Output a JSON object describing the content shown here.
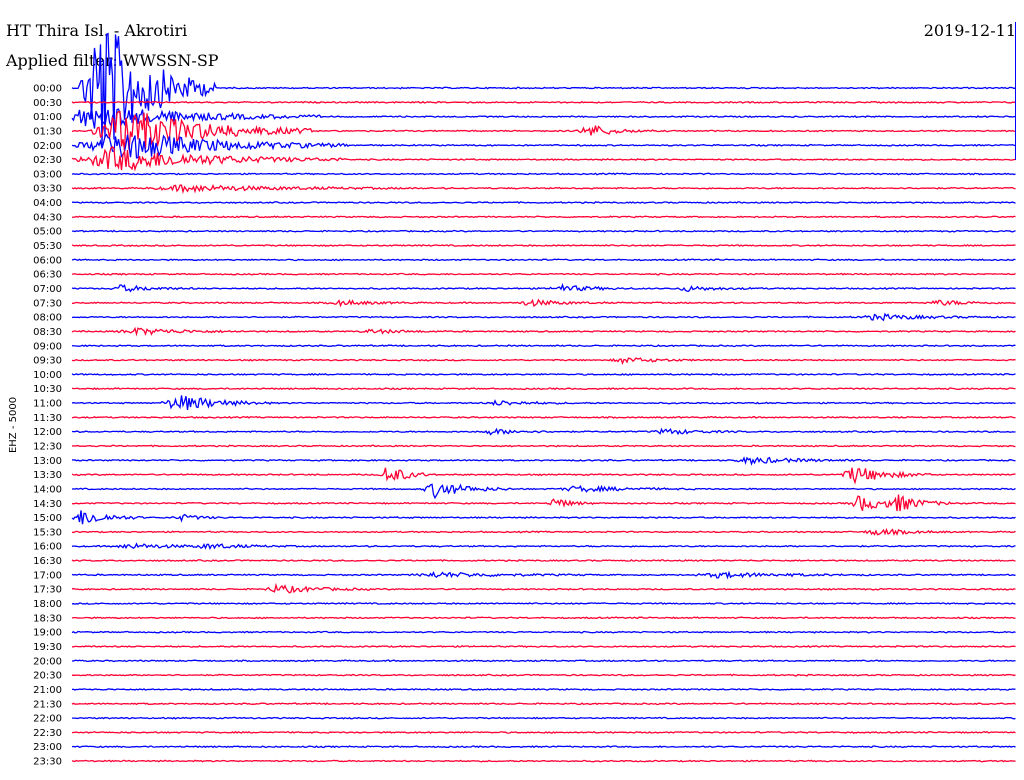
{
  "header": {
    "station": "HT Thira Isl. - Akrotiri",
    "date": "2019-12-11",
    "filter": "Applied filter: WWSSN-SP"
  },
  "side_label": "EHZ - 5000",
  "colors": {
    "odd_trace": "#0000ff",
    "even_trace": "#ff0033",
    "marker": "#0000ff"
  },
  "chart_data": {
    "type": "helicorder",
    "title": "HT Thira Isl. - Akrotiri",
    "ylabel": "EHZ - 5000",
    "rows": [
      "00:00",
      "00:30",
      "01:00",
      "01:30",
      "02:00",
      "02:30",
      "03:00",
      "03:30",
      "04:00",
      "04:30",
      "05:00",
      "05:30",
      "06:00",
      "06:30",
      "07:00",
      "07:30",
      "08:00",
      "08:30",
      "09:00",
      "09:30",
      "10:00",
      "10:30",
      "11:00",
      "11:30",
      "12:00",
      "12:30",
      "13:00",
      "13:30",
      "14:00",
      "14:30",
      "15:00",
      "15:30",
      "16:00",
      "16:30",
      "17:00",
      "17:30",
      "18:00",
      "18:30",
      "19:00",
      "19:30",
      "20:00",
      "20:30",
      "21:00",
      "21:30",
      "22:00",
      "22:30",
      "23:00",
      "23:30"
    ],
    "row_minutes": 30,
    "color_cycle": [
      "blue",
      "red"
    ],
    "events": [
      {
        "row": 0,
        "minute": 0.8,
        "amplitude": 20,
        "duration_min": 1.5
      },
      {
        "row": 2,
        "minute": 0.5,
        "amplitude": 3,
        "duration_min": 3
      },
      {
        "row": 3,
        "minute": 1.5,
        "amplitude": 6,
        "duration_min": 2.5
      },
      {
        "row": 3,
        "minute": 16.5,
        "amplitude": 1.2,
        "duration_min": 0.8
      },
      {
        "row": 3,
        "minute": 16.2,
        "amplitude": 0.6,
        "duration_min": 0.5
      },
      {
        "row": 4,
        "minute": 1.3,
        "amplitude": 4,
        "duration_min": 3
      },
      {
        "row": 5,
        "minute": 1.2,
        "amplitude": 3,
        "duration_min": 3
      },
      {
        "row": 7,
        "minute": 3.5,
        "amplitude": 0.8,
        "duration_min": 3
      },
      {
        "row": 14,
        "minute": 1.5,
        "amplitude": 0.8,
        "duration_min": 1
      },
      {
        "row": 14,
        "minute": 15.5,
        "amplitude": 0.8,
        "duration_min": 1
      },
      {
        "row": 14,
        "minute": 19.5,
        "amplitude": 0.6,
        "duration_min": 1
      },
      {
        "row": 15,
        "minute": 8.5,
        "amplitude": 0.6,
        "duration_min": 1
      },
      {
        "row": 15,
        "minute": 14.5,
        "amplitude": 0.8,
        "duration_min": 1
      },
      {
        "row": 15,
        "minute": 27.5,
        "amplitude": 0.6,
        "duration_min": 1
      },
      {
        "row": 16,
        "minute": 25.5,
        "amplitude": 0.7,
        "duration_min": 1.5
      },
      {
        "row": 17,
        "minute": 2.0,
        "amplitude": 0.8,
        "duration_min": 1.5
      },
      {
        "row": 17,
        "minute": 9.5,
        "amplitude": 0.5,
        "duration_min": 1
      },
      {
        "row": 19,
        "minute": 17.5,
        "amplitude": 0.7,
        "duration_min": 1
      },
      {
        "row": 22,
        "minute": 3.3,
        "amplitude": 2.2,
        "duration_min": 1.2
      },
      {
        "row": 22,
        "minute": 13.5,
        "amplitude": 0.6,
        "duration_min": 1
      },
      {
        "row": 24,
        "minute": 13.3,
        "amplitude": 0.6,
        "duration_min": 1
      },
      {
        "row": 24,
        "minute": 18.8,
        "amplitude": 0.7,
        "duration_min": 1
      },
      {
        "row": 26,
        "minute": 21.5,
        "amplitude": 0.8,
        "duration_min": 1.5
      },
      {
        "row": 27,
        "minute": 10.0,
        "amplitude": 2.5,
        "duration_min": 0.6
      },
      {
        "row": 27,
        "minute": 24.8,
        "amplitude": 2.2,
        "duration_min": 1
      },
      {
        "row": 28,
        "minute": 11.5,
        "amplitude": 2.0,
        "duration_min": 1
      },
      {
        "row": 28,
        "minute": 16.0,
        "amplitude": 0.7,
        "duration_min": 1.5
      },
      {
        "row": 29,
        "minute": 15.3,
        "amplitude": 1.3,
        "duration_min": 0.5
      },
      {
        "row": 29,
        "minute": 25.0,
        "amplitude": 2.0,
        "duration_min": 0.8
      },
      {
        "row": 29,
        "minute": 26.2,
        "amplitude": 1.8,
        "duration_min": 0.8
      },
      {
        "row": 30,
        "minute": 0.3,
        "amplitude": 2.0,
        "duration_min": 0.8
      },
      {
        "row": 30,
        "minute": 3.4,
        "amplitude": 0.8,
        "duration_min": 0.6
      },
      {
        "row": 31,
        "minute": 25.5,
        "amplitude": 0.8,
        "duration_min": 1
      },
      {
        "row": 32,
        "minute": 1.8,
        "amplitude": 0.6,
        "duration_min": 1.5
      },
      {
        "row": 32,
        "minute": 4.3,
        "amplitude": 0.5,
        "duration_min": 1.2
      },
      {
        "row": 34,
        "minute": 11.5,
        "amplitude": 0.6,
        "duration_min": 2
      },
      {
        "row": 34,
        "minute": 20.5,
        "amplitude": 0.6,
        "duration_min": 2
      },
      {
        "row": 35,
        "minute": 6.5,
        "amplitude": 1.0,
        "duration_min": 1.2
      }
    ]
  }
}
